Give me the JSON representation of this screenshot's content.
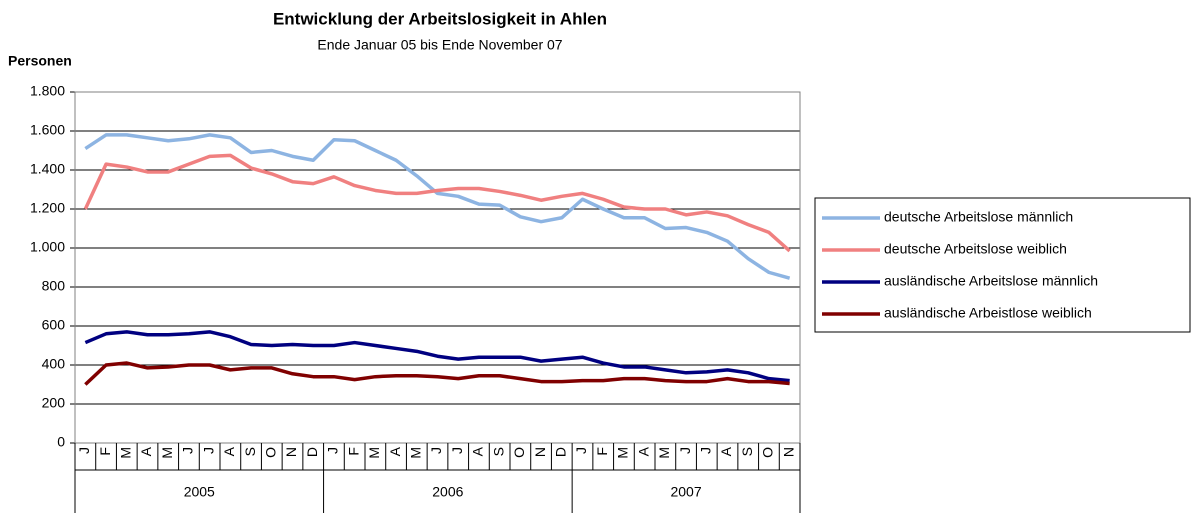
{
  "chart_data": {
    "type": "line",
    "title": "Entwicklung der Arbeitslosigkeit in Ahlen",
    "subtitle": "Ende Januar 05 bis Ende November 07",
    "y_label": "Personen",
    "categories": [
      "J",
      "F",
      "M",
      "A",
      "M",
      "J",
      "J",
      "A",
      "S",
      "O",
      "N",
      "D",
      "J",
      "F",
      "M",
      "A",
      "M",
      "J",
      "J",
      "A",
      "S",
      "O",
      "N",
      "D",
      "J",
      "F",
      "M",
      "A",
      "M",
      "J",
      "J",
      "A",
      "S",
      "O",
      "N"
    ],
    "category_groups": [
      "2005",
      "2006",
      "2007"
    ],
    "ylim": [
      0,
      1800
    ],
    "yticks": [
      0,
      200,
      400,
      600,
      800,
      {
        "value": 1000,
        "label": "1.000"
      },
      {
        "value": 1200,
        "label": "1.200"
      },
      {
        "value": 1400,
        "label": "1.400"
      },
      {
        "value": 1600,
        "label": "1.600"
      },
      {
        "value": 1800,
        "label": "1.800"
      }
    ],
    "grid": true,
    "legend": "right",
    "series": [
      {
        "name": "deutsche Arbeitslose männlich",
        "color": "#8db4e2",
        "values": [
          1510,
          1580,
          1580,
          1565,
          1550,
          1560,
          1580,
          1565,
          1490,
          1500,
          1470,
          1450,
          1555,
          1550,
          1500,
          1450,
          1370,
          1280,
          1265,
          1225,
          1220,
          1160,
          1135,
          1155,
          1250,
          1200,
          1155,
          1155,
          1100,
          1105,
          1080,
          1035,
          945,
          875,
          845
        ]
      },
      {
        "name": "deutsche Arbeitslose weiblich",
        "color": "#f08080",
        "values": [
          1200,
          1430,
          1415,
          1390,
          1390,
          1430,
          1470,
          1475,
          1410,
          1380,
          1340,
          1330,
          1365,
          1320,
          1295,
          1280,
          1280,
          1295,
          1305,
          1305,
          1290,
          1270,
          1245,
          1265,
          1280,
          1250,
          1210,
          1200,
          1200,
          1170,
          1185,
          1165,
          1120,
          1080,
          985
        ]
      },
      {
        "name": "ausländische Arbeitslose männlich",
        "color": "#000080",
        "values": [
          515,
          560,
          570,
          555,
          555,
          560,
          570,
          545,
          505,
          500,
          505,
          500,
          500,
          515,
          500,
          485,
          470,
          445,
          430,
          440,
          440,
          440,
          420,
          430,
          440,
          410,
          390,
          390,
          375,
          360,
          365,
          375,
          360,
          330,
          320
        ]
      },
      {
        "name": "ausländische Arbeistlose weiblich",
        "color": "#800000",
        "values": [
          300,
          400,
          410,
          385,
          390,
          400,
          400,
          375,
          385,
          385,
          355,
          340,
          340,
          325,
          340,
          345,
          345,
          340,
          330,
          345,
          345,
          330,
          315,
          315,
          320,
          320,
          330,
          330,
          320,
          315,
          315,
          330,
          315,
          315,
          305
        ]
      }
    ]
  }
}
